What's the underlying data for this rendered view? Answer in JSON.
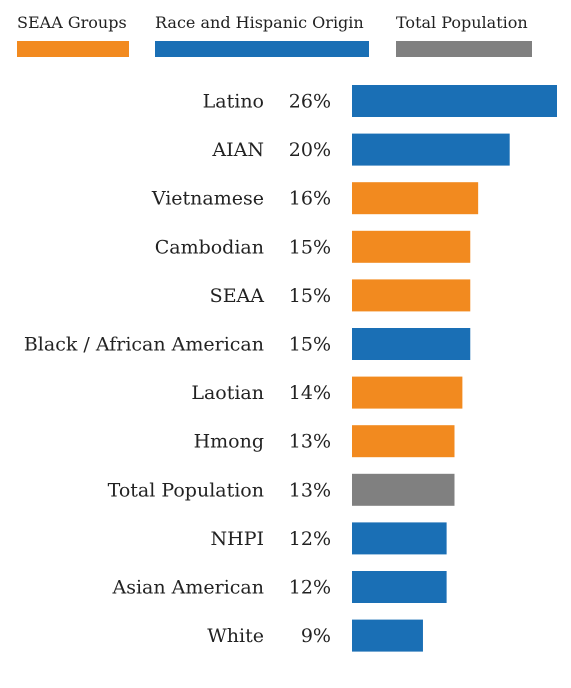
{
  "legend": [
    {
      "label": "SEAA Groups",
      "color": "#F28A1F"
    },
    {
      "label": "Race and Hispanic Origin",
      "color": "#1A6FB5"
    },
    {
      "label": "Total Population",
      "color": "#808080"
    }
  ],
  "chart_data": {
    "type": "bar",
    "orientation": "horizontal",
    "unit": "%",
    "categories": [
      "Latino",
      "AIAN",
      "Vietnamese",
      "Cambodian",
      "SEAA",
      "Black / African American",
      "Laotian",
      "Hmong",
      "Total Population",
      "NHPI",
      "Asian American",
      "White"
    ],
    "values": [
      26,
      20,
      16,
      15,
      15,
      15,
      14,
      13,
      13,
      12,
      12,
      9
    ],
    "groups": [
      "Race and Hispanic Origin",
      "Race and Hispanic Origin",
      "SEAA Groups",
      "SEAA Groups",
      "SEAA Groups",
      "Race and Hispanic Origin",
      "SEAA Groups",
      "SEAA Groups",
      "Total Population",
      "Race and Hispanic Origin",
      "Race and Hispanic Origin",
      "Race and Hispanic Origin"
    ],
    "value_labels": [
      "26%",
      "20%",
      "16%",
      "15%",
      "15%",
      "15%",
      "14%",
      "13%",
      "13%",
      "12%",
      "12%",
      "9%"
    ],
    "colors": {
      "SEAA Groups": "#F28A1F",
      "Race and Hispanic Origin": "#1A6FB5",
      "Total Population": "#808080"
    },
    "legend_position": "top",
    "grid": false
  }
}
